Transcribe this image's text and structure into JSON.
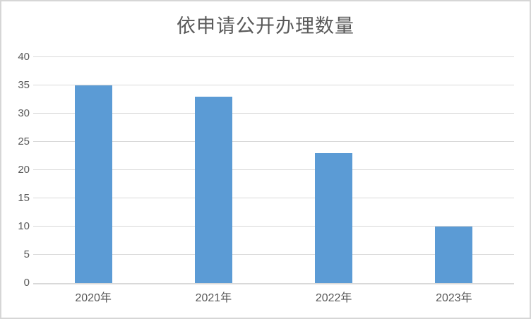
{
  "title": "依申请公开办理数量",
  "colors": {
    "bar": "#5B9BD5",
    "gridline": "#D9D9D9",
    "axis_line": "#D9D9D9",
    "axis_text": "#595959",
    "title_text": "#595959",
    "frame_border": "#D6D6D6",
    "background": "#FFFFFF"
  },
  "chart_data": {
    "type": "bar",
    "title": "依申请公开办理数量",
    "categories": [
      "2020年",
      "2021年",
      "2022年",
      "2023年"
    ],
    "values": [
      35,
      33,
      23,
      10
    ],
    "xlabel": "",
    "ylabel": "",
    "ylim": [
      0,
      40
    ],
    "yticks": [
      0,
      5,
      10,
      15,
      20,
      25,
      30,
      35,
      40
    ],
    "grid": true,
    "legend": "none",
    "bar_color": "#5B9BD5"
  }
}
